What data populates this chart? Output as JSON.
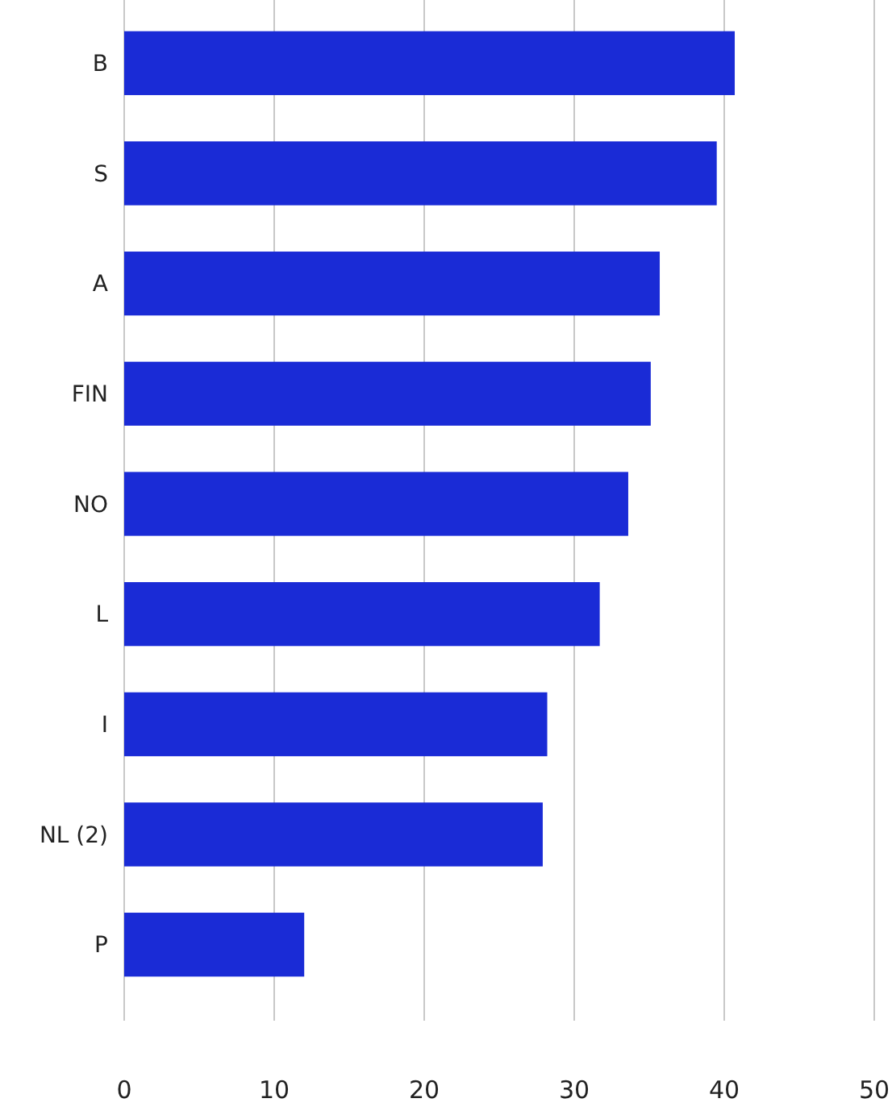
{
  "chart_data": {
    "type": "bar",
    "orientation": "horizontal",
    "categories": [
      "B",
      "S",
      "A",
      "FIN",
      "NO",
      "L",
      "I",
      "NL (2)",
      "P"
    ],
    "values": [
      40.7,
      39.5,
      35.7,
      35.1,
      33.6,
      31.7,
      28.2,
      27.9,
      12.0
    ],
    "color": "#1a2bd6",
    "xlim": [
      0,
      50
    ],
    "xticks": [
      0,
      10,
      20,
      30,
      40,
      50
    ],
    "grid": "x"
  }
}
